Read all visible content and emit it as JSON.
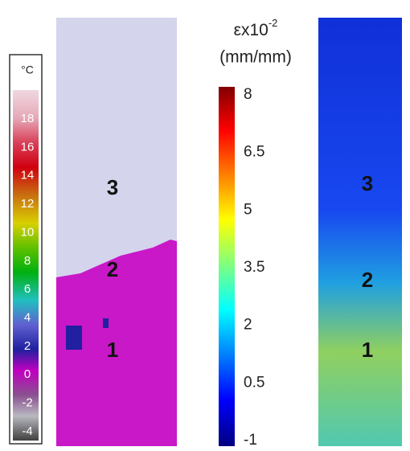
{
  "temperature_scale": {
    "unit": "°C",
    "ticks": [
      18,
      16,
      14,
      12,
      10,
      8,
      6,
      4,
      2,
      0,
      -2,
      -4
    ]
  },
  "temperature_map": {
    "labels": [
      "3",
      "2",
      "1"
    ]
  },
  "strain_scale": {
    "title": "εx10",
    "exponent": "-2",
    "unit": "(mm/mm)",
    "ticks": [
      8,
      6.5,
      5,
      3.5,
      2,
      0.5,
      -1
    ]
  },
  "strain_map": {
    "labels": [
      "3",
      "2",
      "1"
    ]
  }
}
